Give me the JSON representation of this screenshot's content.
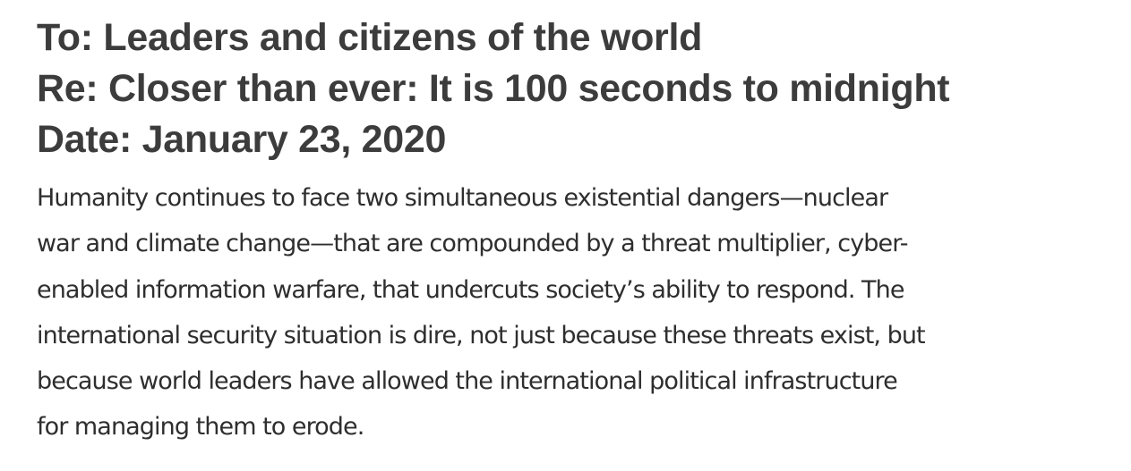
{
  "memo": {
    "to_line": "To: Leaders and citizens of the world",
    "re_line": "Re: Closer than ever: It is 100 seconds to midnight",
    "date_line": "Date: January 23, 2020",
    "paragraph_lines": [
      "Humanity continues to face two simultaneous existential dangers—nuclear",
      "war and climate change—that are compounded by a threat multiplier, cyber-",
      "enabled information warfare, that undercuts society’s ability to respond. The",
      "international security situation is dire, not just because these threats exist, but",
      "because world leaders have allowed the international political infrastructure",
      "for managing them to erode."
    ]
  }
}
